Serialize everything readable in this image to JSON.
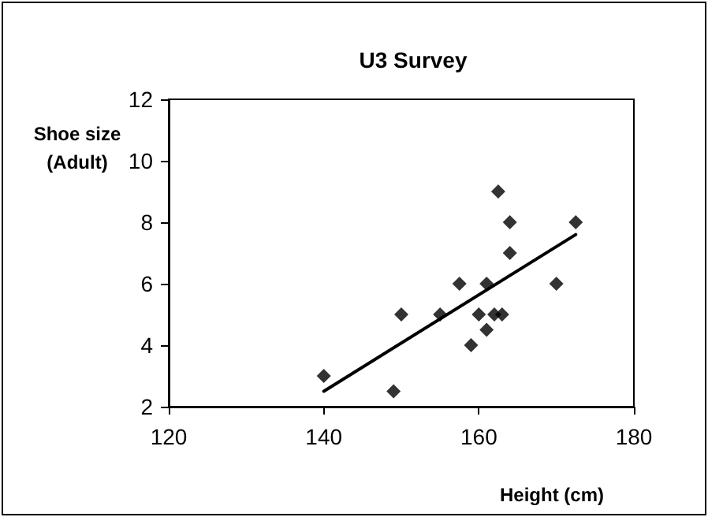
{
  "chart_data": {
    "type": "scatter",
    "title": "U3 Survey",
    "xlabel": "Height (cm)",
    "ylabel": "Shoe size (Adult)",
    "series": [
      {
        "color": "#000000",
        "marker": "diamond",
        "x": [
          140,
          149,
          150,
          155,
          157.5,
          159,
          160,
          161,
          161,
          162,
          163,
          162.5,
          164,
          164,
          170,
          172.5
        ],
        "values": [
          3,
          2.5,
          5,
          5,
          6,
          4,
          5,
          6,
          4.5,
          5,
          5,
          9,
          8,
          7,
          6,
          8
        ]
      },
      {
        "type": "line",
        "color": "#000000",
        "marker": "none",
        "line_style": "solid",
        "x": [
          140,
          172.5
        ],
        "values": [
          2.5,
          7.6
        ]
      }
    ],
    "xlim": [
      120,
      180
    ],
    "xticks": [
      120,
      140,
      160,
      180
    ],
    "ylim": [
      2,
      12
    ],
    "yticks": [
      2,
      4,
      6,
      8,
      10,
      12
    ],
    "grid": false
  }
}
